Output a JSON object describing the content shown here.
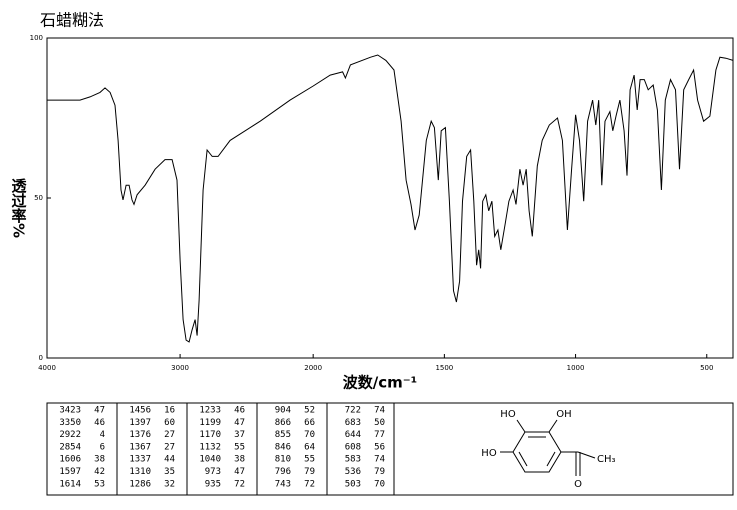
{
  "chart_data": {
    "type": "line",
    "title": "石蜡糊法",
    "x_label": "波数/cm⁻¹",
    "y_label": "透过率%",
    "xlim": [
      4000,
      400
    ],
    "x_scale_break": 2000,
    "xticks": [
      4000,
      3000,
      2000,
      1500,
      1000,
      500
    ],
    "ylim": [
      0,
      100
    ],
    "yticks": [
      0,
      50,
      100
    ],
    "grid": false,
    "series": [
      {
        "color": "#000000",
        "x": [
          4000,
          3902,
          3752,
          3677,
          3602,
          3564,
          3526,
          3489,
          3466,
          3444,
          3429,
          3406,
          3383,
          3361,
          3346,
          3323,
          3263,
          3188,
          3113,
          3060,
          3023,
          3000,
          2977,
          2955,
          2932,
          2910,
          2887,
          2872,
          2857,
          2827,
          2797,
          2759,
          2714,
          2624,
          2398,
          2173,
          2000,
          1935,
          1888,
          1877,
          1858,
          1781,
          1754,
          1723,
          1692,
          1665,
          1646,
          1627,
          1612,
          1596,
          1569,
          1550,
          1538,
          1523,
          1512,
          1496,
          1481,
          1465,
          1454,
          1442,
          1431,
          1415,
          1400,
          1388,
          1377,
          1369,
          1362,
          1354,
          1342,
          1331,
          1319,
          1308,
          1296,
          1285,
          1269,
          1254,
          1238,
          1227,
          1212,
          1200,
          1188,
          1177,
          1165,
          1146,
          1127,
          1100,
          1069,
          1050,
          1031,
          1015,
          1000,
          985,
          969,
          954,
          935,
          923,
          912,
          900,
          888,
          869,
          858,
          846,
          831,
          815,
          804,
          792,
          777,
          765,
          754,
          738,
          723,
          704,
          688,
          673,
          658,
          638,
          619,
          604,
          588,
          569,
          550,
          535,
          512,
          488,
          465,
          450,
          427,
          400
        ],
        "values": [
          80.6,
          80.6,
          80.6,
          81.6,
          83,
          84.4,
          83,
          79,
          68,
          52.5,
          49.4,
          54,
          54,
          49.4,
          48,
          51,
          54,
          59,
          62,
          62,
          55.6,
          30.6,
          12,
          5.6,
          5,
          8.8,
          12,
          7,
          18,
          52.5,
          65,
          63,
          63,
          68,
          74,
          80.6,
          85,
          88.4,
          89.4,
          87.5,
          91.6,
          94,
          94.7,
          93,
          90,
          74,
          55.6,
          48,
          40,
          44.7,
          68,
          74,
          72,
          55.6,
          71,
          72,
          49,
          21,
          17.5,
          24,
          49,
          63,
          65,
          49,
          29,
          33.8,
          28,
          49,
          51,
          46,
          49,
          38,
          40,
          33.8,
          41.6,
          49,
          52.5,
          48,
          59,
          54,
          59,
          46,
          38,
          60,
          68,
          72.8,
          75,
          68,
          40,
          59,
          76,
          68,
          49,
          74,
          80.6,
          72.8,
          80.6,
          54,
          74,
          77,
          71,
          75.6,
          80.6,
          71,
          57,
          83.8,
          88.4,
          77.5,
          87,
          87,
          83.8,
          85.3,
          77.5,
          52.5,
          80.6,
          87,
          83.8,
          59,
          83.8,
          87,
          90,
          80.6,
          74,
          75.6,
          90,
          94,
          93.7,
          93
        ]
      }
    ]
  },
  "peak_table": [
    [
      [
        3423,
        47
      ],
      [
        3350,
        46
      ],
      [
        2922,
        4
      ],
      [
        2854,
        6
      ],
      [
        1606,
        38
      ],
      [
        1597,
        42
      ],
      [
        1614,
        53
      ]
    ],
    [
      [
        1456,
        16
      ],
      [
        1397,
        60
      ],
      [
        1376,
        27
      ],
      [
        1367,
        27
      ],
      [
        1337,
        44
      ],
      [
        1310,
        35
      ],
      [
        1286,
        32
      ]
    ],
    [
      [
        1233,
        46
      ],
      [
        1199,
        47
      ],
      [
        1170,
        37
      ],
      [
        1132,
        55
      ],
      [
        1040,
        38
      ],
      [
        973,
        47
      ],
      [
        935,
        72
      ]
    ],
    [
      [
        904,
        52
      ],
      [
        866,
        66
      ],
      [
        855,
        70
      ],
      [
        846,
        64
      ],
      [
        810,
        55
      ],
      [
        796,
        79
      ],
      [
        743,
        72
      ]
    ],
    [
      [
        722,
        74
      ],
      [
        683,
        50
      ],
      [
        644,
        77
      ],
      [
        608,
        56
      ],
      [
        583,
        74
      ],
      [
        536,
        79
      ],
      [
        503,
        70
      ]
    ]
  ],
  "structure": {
    "labels": [
      "HO",
      "OH",
      "HO",
      "O",
      "CH₃"
    ]
  }
}
